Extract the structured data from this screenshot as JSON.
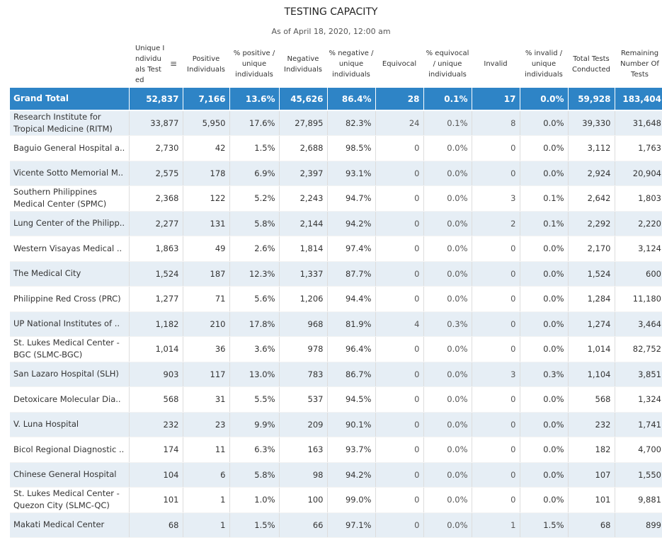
{
  "title": "TESTING CAPACITY",
  "subtitle": "As of April 18, 2020, 12:00 am",
  "colors": {
    "total_row_bg": "#2e84c6",
    "odd_row_bg": "#e6eef5",
    "even_row_bg": "#ffffff"
  },
  "sort_icon": "sort-descending-icon",
  "chart_data": {
    "type": "table",
    "columns": [
      "",
      "Unique I ndividu als Test ed",
      "Positive Individuals",
      "% positive / unique individuals",
      "Negative Individuals",
      "% negative / unique individuals",
      "Equivocal",
      "% equivocal / unique individuals",
      "Invalid",
      "% invalid / unique individuals",
      "Total Tests Conducted",
      "Remaining Number Of Tests"
    ],
    "rows": [
      [
        "Grand Total",
        "52,837",
        "7,166",
        "13.6%",
        "45,626",
        "86.4%",
        "28",
        "0.1%",
        "17",
        "0.0%",
        "59,928",
        "183,404"
      ],
      [
        "Research Institute for Tropical Medicine (RITM)",
        "33,877",
        "5,950",
        "17.6%",
        "27,895",
        "82.3%",
        "24",
        "0.1%",
        "8",
        "0.0%",
        "39,330",
        "31,648"
      ],
      [
        "Baguio General Hospital a..",
        "2,730",
        "42",
        "1.5%",
        "2,688",
        "98.5%",
        "0",
        "0.0%",
        "0",
        "0.0%",
        "3,112",
        "1,763"
      ],
      [
        "Vicente Sotto Memorial M..",
        "2,575",
        "178",
        "6.9%",
        "2,397",
        "93.1%",
        "0",
        "0.0%",
        "0",
        "0.0%",
        "2,924",
        "20,904"
      ],
      [
        "Southern Philippines Medical Center (SPMC)",
        "2,368",
        "122",
        "5.2%",
        "2,243",
        "94.7%",
        "0",
        "0.0%",
        "3",
        "0.1%",
        "2,642",
        "1,803"
      ],
      [
        "Lung Center of the Philipp..",
        "2,277",
        "131",
        "5.8%",
        "2,144",
        "94.2%",
        "0",
        "0.0%",
        "2",
        "0.1%",
        "2,292",
        "2,220"
      ],
      [
        "Western Visayas Medical ..",
        "1,863",
        "49",
        "2.6%",
        "1,814",
        "97.4%",
        "0",
        "0.0%",
        "0",
        "0.0%",
        "2,170",
        "3,124"
      ],
      [
        "The Medical City",
        "1,524",
        "187",
        "12.3%",
        "1,337",
        "87.7%",
        "0",
        "0.0%",
        "0",
        "0.0%",
        "1,524",
        "600"
      ],
      [
        "Philippine Red Cross (PRC)",
        "1,277",
        "71",
        "5.6%",
        "1,206",
        "94.4%",
        "0",
        "0.0%",
        "0",
        "0.0%",
        "1,284",
        "11,180"
      ],
      [
        "UP National Institutes of ..",
        "1,182",
        "210",
        "17.8%",
        "968",
        "81.9%",
        "4",
        "0.3%",
        "0",
        "0.0%",
        "1,274",
        "3,464"
      ],
      [
        "St. Lukes Medical Center - BGC (SLMC-BGC)",
        "1,014",
        "36",
        "3.6%",
        "978",
        "96.4%",
        "0",
        "0.0%",
        "0",
        "0.0%",
        "1,014",
        "82,752"
      ],
      [
        "San Lazaro Hospital (SLH)",
        "903",
        "117",
        "13.0%",
        "783",
        "86.7%",
        "0",
        "0.0%",
        "3",
        "0.3%",
        "1,104",
        "3,851"
      ],
      [
        "Detoxicare Molecular Dia..",
        "568",
        "31",
        "5.5%",
        "537",
        "94.5%",
        "0",
        "0.0%",
        "0",
        "0.0%",
        "568",
        "1,324"
      ],
      [
        "V. Luna Hospital",
        "232",
        "23",
        "9.9%",
        "209",
        "90.1%",
        "0",
        "0.0%",
        "0",
        "0.0%",
        "232",
        "1,741"
      ],
      [
        "Bicol Regional Diagnostic ..",
        "174",
        "11",
        "6.3%",
        "163",
        "93.7%",
        "0",
        "0.0%",
        "0",
        "0.0%",
        "182",
        "4,700"
      ],
      [
        "Chinese General Hospital",
        "104",
        "6",
        "5.8%",
        "98",
        "94.2%",
        "0",
        "0.0%",
        "0",
        "0.0%",
        "107",
        "1,550"
      ],
      [
        "St. Lukes Medical Center - Quezon City (SLMC-QC)",
        "101",
        "1",
        "1.0%",
        "100",
        "99.0%",
        "0",
        "0.0%",
        "0",
        "0.0%",
        "101",
        "9,881"
      ],
      [
        "Makati Medical Center",
        "68",
        "1",
        "1.5%",
        "66",
        "97.1%",
        "0",
        "0.0%",
        "1",
        "1.5%",
        "68",
        "899"
      ]
    ]
  }
}
